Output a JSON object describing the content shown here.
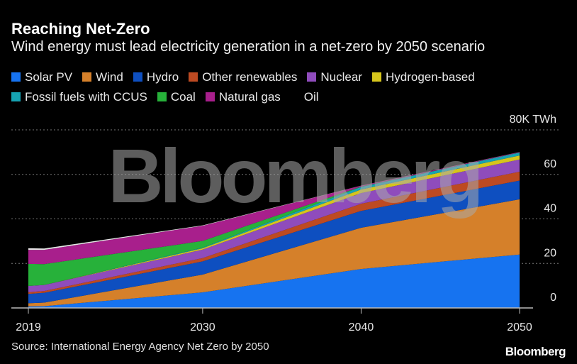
{
  "title": "Reaching Net-Zero",
  "subtitle": "Wind energy must lead electricity generation in a net-zero by 2050 scenario",
  "source": "Source: International Energy Agency Net Zero by 2050",
  "logo": "Bloomberg",
  "watermark": "Bloomberg",
  "chart_data": {
    "type": "area",
    "stacked": true,
    "x": [
      2019,
      2020,
      2030,
      2040,
      2050
    ],
    "xticks": [
      "2019",
      "2030",
      "2040",
      "2050"
    ],
    "ylim": [
      0,
      80
    ],
    "yticks": [
      "0",
      "20",
      "40",
      "60",
      "80K TWh"
    ],
    "grid": true,
    "legend": "top",
    "series": [
      {
        "name": "Solar PV",
        "color": "#1673f0",
        "values": [
          0.7,
          0.8,
          7.0,
          17.5,
          24.0
        ]
      },
      {
        "name": "Wind",
        "color": "#d5802a",
        "values": [
          1.4,
          1.6,
          8.0,
          18.5,
          24.8
        ]
      },
      {
        "name": "Hydro",
        "color": "#0e4fc0",
        "values": [
          4.2,
          4.4,
          5.9,
          7.6,
          8.4
        ]
      },
      {
        "name": "Other renewables",
        "color": "#bd4a22",
        "values": [
          0.8,
          0.8,
          1.5,
          3.2,
          4.0
        ]
      },
      {
        "name": "Nuclear",
        "color": "#8f4cbc",
        "values": [
          2.8,
          2.7,
          3.8,
          4.8,
          5.5
        ]
      },
      {
        "name": "Hydrogen-based",
        "color": "#d6c51c",
        "values": [
          0,
          0,
          0.6,
          1.6,
          1.8
        ]
      },
      {
        "name": "Fossil fuels with CCUS",
        "color": "#16a3b3",
        "values": [
          0,
          0,
          0.3,
          1.2,
          1.3
        ]
      },
      {
        "name": "Coal",
        "color": "#27b13a",
        "values": [
          9.9,
          9.4,
          3.0,
          0.1,
          0
        ]
      },
      {
        "name": "Natural gas",
        "color": "#a81f8c",
        "values": [
          6.3,
          6.4,
          6.8,
          0.4,
          0.2
        ]
      },
      {
        "name": "Oil",
        "color": "#000000",
        "area_color": "#e6e6e6",
        "values": [
          0.7,
          0.6,
          0.2,
          0.05,
          0.02
        ]
      }
    ]
  }
}
